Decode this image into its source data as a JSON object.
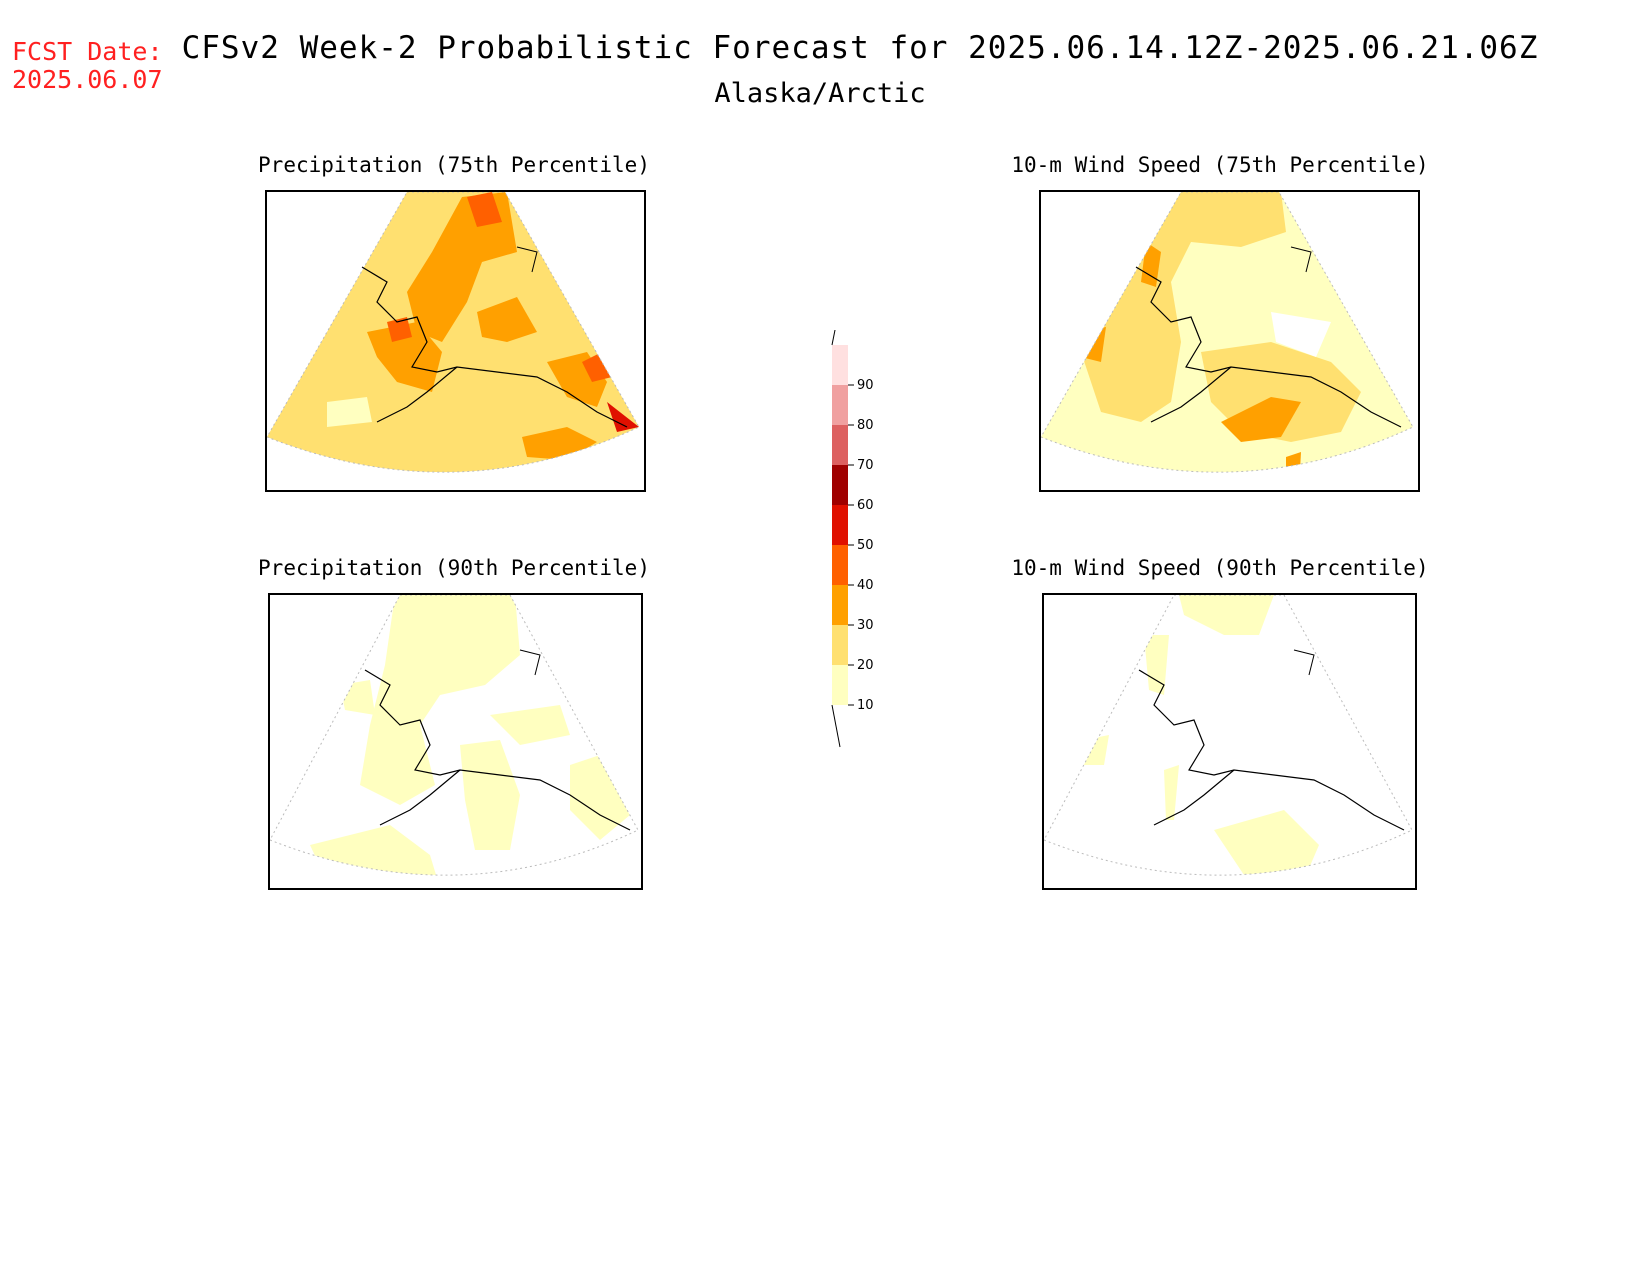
{
  "header": {
    "fcst_label": "FCST Date:",
    "fcst_date": "2025.06.07",
    "title": "CFSv2 Week-2 Probabilistic Forecast for 2025.06.14.12Z-2025.06.21.06Z",
    "subtitle": "Alaska/Arctic",
    "fcst_color": "#ff2020"
  },
  "panels": [
    {
      "title": "Precipitation (75th Percentile)",
      "map": "precip-75"
    },
    {
      "title": "10-m Wind Speed (75th Percentile)",
      "map": "wind-75"
    },
    {
      "title": "Precipitation (90th Percentile)",
      "map": "precip-90"
    },
    {
      "title": "10-m Wind Speed (90th Percentile)",
      "map": "wind-90"
    }
  ],
  "colorbar": {
    "levels": [
      {
        "label": "10",
        "color": "#ffffc0"
      },
      {
        "label": "20",
        "color": "#ffe070"
      },
      {
        "label": "30",
        "color": "#ffa000"
      },
      {
        "label": "40",
        "color": "#ff6000"
      },
      {
        "label": "50",
        "color": "#e01000"
      },
      {
        "label": "60",
        "color": "#a00000"
      },
      {
        "label": "70",
        "color": "#dd6060"
      },
      {
        "label": "80",
        "color": "#f0a0a0"
      },
      {
        "label": "90",
        "color": "#ffe0e0"
      }
    ]
  }
}
